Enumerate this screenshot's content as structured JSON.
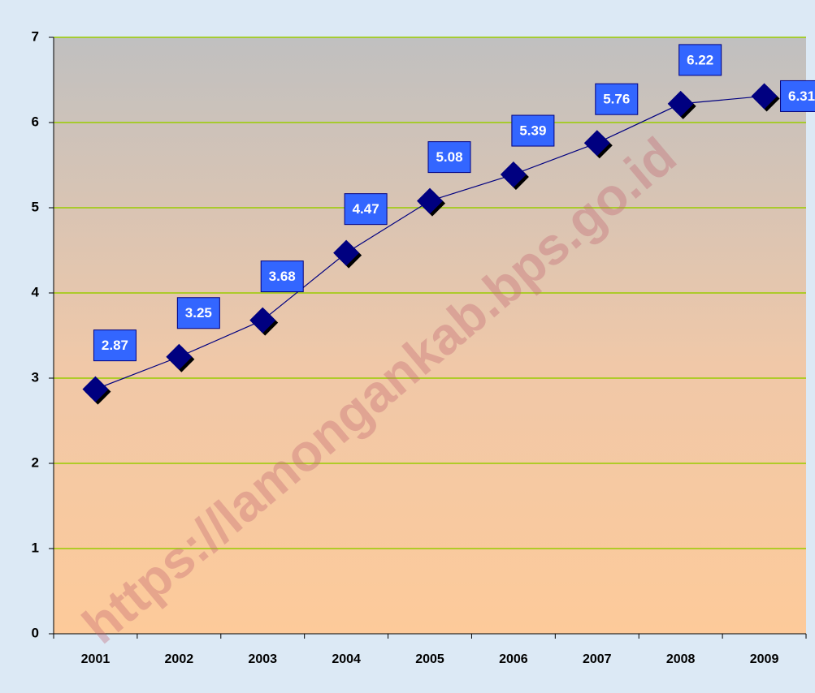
{
  "chart_data": {
    "type": "line",
    "categories": [
      "2001",
      "2002",
      "2003",
      "2004",
      "2005",
      "2006",
      "2007",
      "2008",
      "2009"
    ],
    "values": [
      2.87,
      3.25,
      3.68,
      4.47,
      5.08,
      5.39,
      5.76,
      6.22,
      6.31
    ],
    "color": "#000080",
    "ylim": [
      0,
      7
    ],
    "yticks": [
      0,
      1,
      2,
      3,
      4,
      5,
      6,
      7
    ],
    "grid": true,
    "watermark": "https://lamongankab.bps.go.id"
  }
}
